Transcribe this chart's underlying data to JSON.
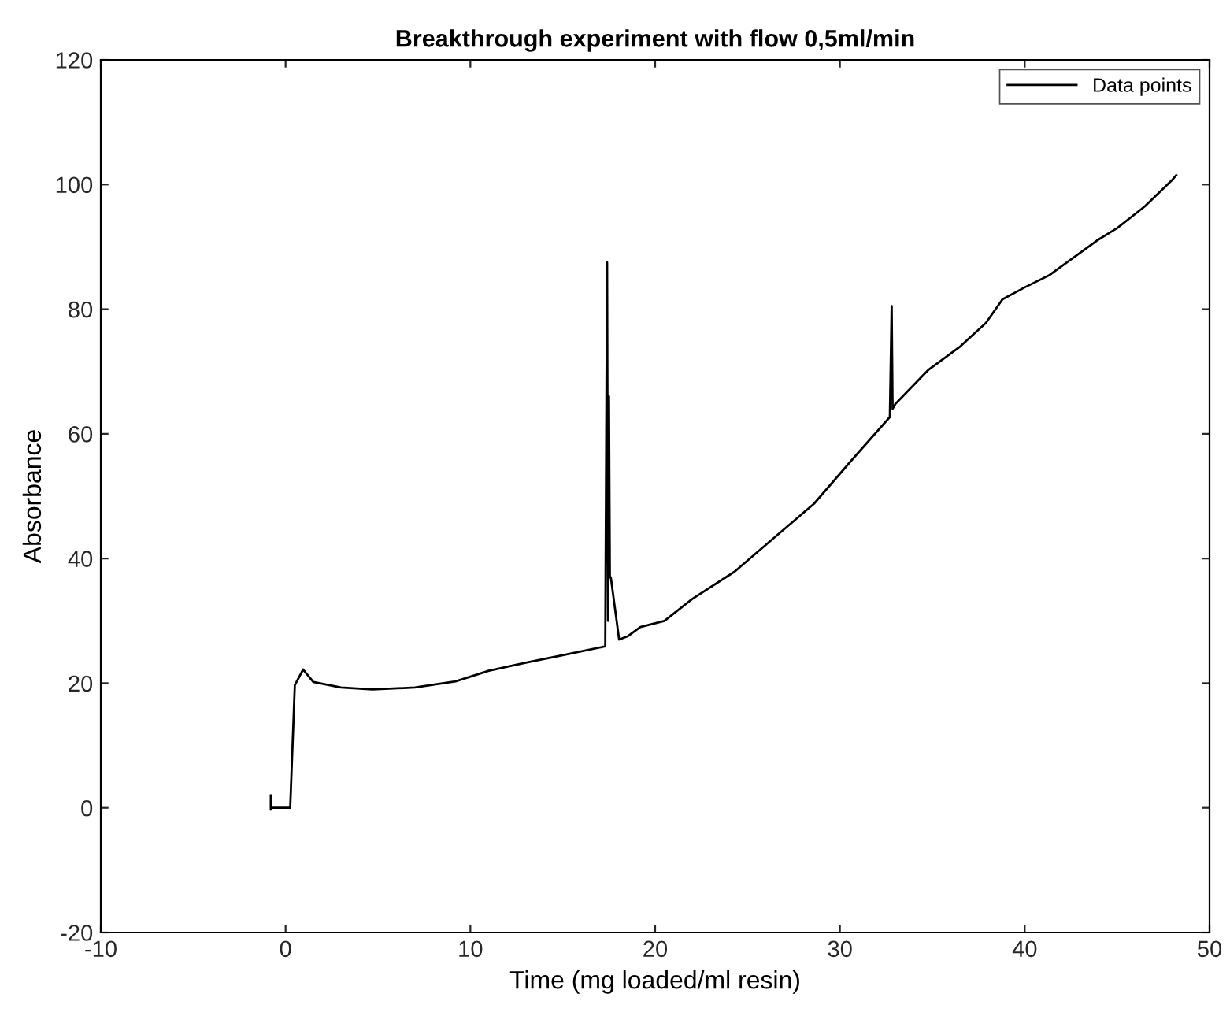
{
  "chart_data": {
    "type": "line",
    "title": "Breakthrough experiment with flow 0,5ml/min",
    "xlabel": "Time (mg loaded/ml resin)",
    "ylabel": "Absorbance",
    "xlim": [
      -10,
      50
    ],
    "xticks": [
      -10,
      0,
      10,
      20,
      30,
      40,
      50
    ],
    "ylim": [
      -20,
      120
    ],
    "yticks": [
      -20,
      0,
      20,
      40,
      60,
      80,
      100,
      120
    ],
    "grid": false,
    "legend": "top right",
    "marker": "none",
    "line_style": "solid",
    "series": [
      {
        "name": "Data points",
        "color": "#000000",
        "x": [
          -0.8,
          -0.8,
          -0.8,
          0.25,
          0.5,
          0.95,
          1.5,
          3.0,
          4.7,
          7.0,
          9.2,
          11.0,
          13.0,
          15.0,
          17.3,
          17.4,
          17.45,
          17.5,
          17.55,
          17.6,
          18.05,
          18.5,
          19.2,
          20.5,
          22.0,
          24.3,
          26.5,
          28.6,
          30.7,
          32.7,
          32.8,
          32.85,
          33.0,
          34.8,
          36.5,
          37.9,
          38.8,
          40.0,
          41.3,
          43.9,
          45.0,
          46.5,
          48.0,
          48.2
        ],
        "values": [
          2,
          -0.3,
          0,
          0,
          19.7,
          22.2,
          20.2,
          19.3,
          19.0,
          19.3,
          20.3,
          22.0,
          23.3,
          24.5,
          25.9,
          87.5,
          30,
          66,
          37,
          37,
          27.0,
          27.5,
          29,
          30,
          33.5,
          37.9,
          43.5,
          48.8,
          56,
          62.7,
          80.5,
          64,
          64.8,
          70.3,
          74,
          77.8,
          81.6,
          83.5,
          85.4,
          91,
          93,
          96.5,
          100.8,
          101.5
        ]
      }
    ]
  }
}
